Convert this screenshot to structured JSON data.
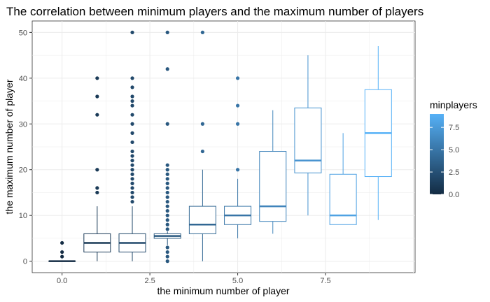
{
  "chart_data": {
    "type": "boxplot",
    "title": "The correlation between minimum players and the maximum number of players",
    "xlabel": "the minimum number of player",
    "ylabel": "the maximum number of player",
    "xlim": [
      -0.85,
      10.05
    ],
    "ylim": [
      -2.5,
      52.5
    ],
    "x_ticks": [
      0,
      2.5,
      5,
      7.5
    ],
    "x_tick_labels": [
      "0.0",
      "2.5",
      "5.0",
      "7.5"
    ],
    "y_ticks": [
      0,
      10,
      20,
      30,
      40,
      50
    ],
    "y_tick_labels": [
      "0",
      "10",
      "20",
      "30",
      "40",
      "50"
    ],
    "grid": true,
    "legend": {
      "title": "minplayers",
      "position": "right",
      "type": "continuous colorbar",
      "range": [
        0,
        9
      ],
      "ticks": [
        0,
        2.5,
        5,
        7.5
      ],
      "tick_labels": [
        "0.0",
        "2.5",
        "5.0",
        "7.5"
      ],
      "color_low": "#132B43",
      "color_high": "#56B1F7"
    },
    "boxes": [
      {
        "x": 0,
        "q1": 0,
        "median": 0,
        "q3": 0,
        "whisker_low": 0,
        "whisker_high": 0,
        "outliers": [
          1,
          2,
          4
        ]
      },
      {
        "x": 1,
        "q1": 2,
        "median": 4,
        "q3": 6,
        "whisker_low": 0,
        "whisker_high": 12,
        "outliers": [
          15,
          16,
          20,
          32,
          36,
          40
        ]
      },
      {
        "x": 2,
        "q1": 2,
        "median": 4,
        "q3": 6,
        "whisker_low": 0,
        "whisker_high": 12,
        "outliers": [
          13,
          14,
          15,
          16,
          17,
          18,
          19,
          20,
          21,
          22,
          23,
          24,
          26,
          28,
          30,
          32,
          34,
          35,
          36,
          38,
          40,
          50
        ]
      },
      {
        "x": 3,
        "q1": 5,
        "median": 5.5,
        "q3": 6,
        "whisker_low": 3.5,
        "whisker_high": 6.5,
        "outliers": [
          0,
          1,
          2,
          3,
          7,
          8,
          9,
          10,
          11,
          12,
          13,
          14,
          15,
          16,
          17,
          18,
          19,
          20,
          21,
          30,
          42,
          50
        ]
      },
      {
        "x": 4,
        "q1": 6,
        "median": 8,
        "q3": 12,
        "whisker_low": 0,
        "whisker_high": 20,
        "outliers": [
          24,
          30,
          50
        ]
      },
      {
        "x": 5,
        "q1": 8,
        "median": 10,
        "q3": 12,
        "whisker_low": 5,
        "whisker_high": 18,
        "outliers": [
          20,
          30,
          34,
          40
        ]
      },
      {
        "x": 6,
        "q1": 8.7,
        "median": 12,
        "q3": 24,
        "whisker_low": 6,
        "whisker_high": 33,
        "outliers": []
      },
      {
        "x": 7,
        "q1": 19.3,
        "median": 22,
        "q3": 33.5,
        "whisker_low": 10,
        "whisker_high": 45,
        "outliers": []
      },
      {
        "x": 8,
        "q1": 8,
        "median": 10,
        "q3": 19,
        "whisker_low": 8,
        "whisker_high": 28,
        "outliers": []
      },
      {
        "x": 9,
        "q1": 18.5,
        "median": 28,
        "q3": 37.5,
        "whisker_low": 9,
        "whisker_high": 47,
        "outliers": []
      }
    ]
  }
}
